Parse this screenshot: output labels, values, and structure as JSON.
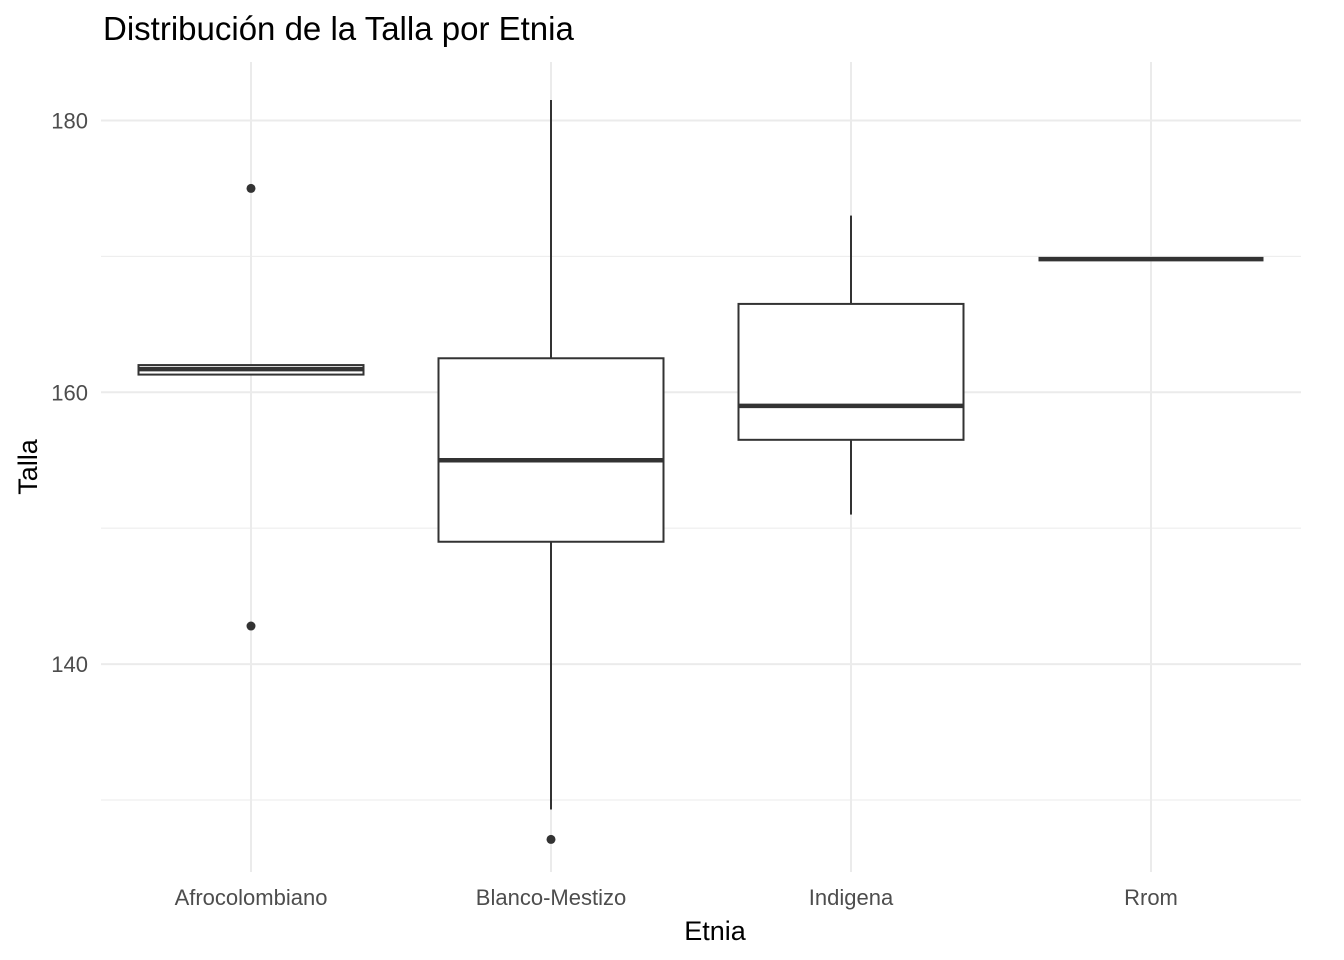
{
  "chart_data": {
    "type": "boxplot",
    "title": "Distribución de la Talla por Etnia",
    "xlabel": "Etnia",
    "ylabel": "Talla",
    "categories": [
      "Afrocolombiano",
      "Blanco-Mestizo",
      "Indigena",
      "Rrom"
    ],
    "boxes": [
      {
        "category": "Afrocolombiano",
        "q1": 161.3,
        "median": 161.7,
        "q3": 162.0,
        "whisker_low": 161.3,
        "whisker_high": 162.0,
        "outliers": [
          175.0,
          142.8
        ]
      },
      {
        "category": "Blanco-Mestizo",
        "q1": 149.0,
        "median": 155.0,
        "q3": 162.5,
        "whisker_low": 129.3,
        "whisker_high": 181.5,
        "outliers": [
          127.1
        ]
      },
      {
        "category": "Indigena",
        "q1": 156.5,
        "median": 159.0,
        "q3": 166.5,
        "whisker_low": 151.0,
        "whisker_high": 173.0,
        "outliers": []
      },
      {
        "category": "Rrom",
        "q1": 169.8,
        "median": 169.8,
        "q3": 169.8,
        "whisker_low": 169.8,
        "whisker_high": 169.8,
        "outliers": []
      }
    ],
    "y_ticks": [
      140,
      160,
      180
    ],
    "y_minor_ticks": [
      130,
      150,
      170
    ],
    "ylim": [
      124.7,
      184.3
    ],
    "grid": true,
    "theme": "minimal",
    "colors": {
      "box_line": "#333333",
      "grid": "#ebebeb",
      "tick_text": "#4d4d4d"
    }
  }
}
